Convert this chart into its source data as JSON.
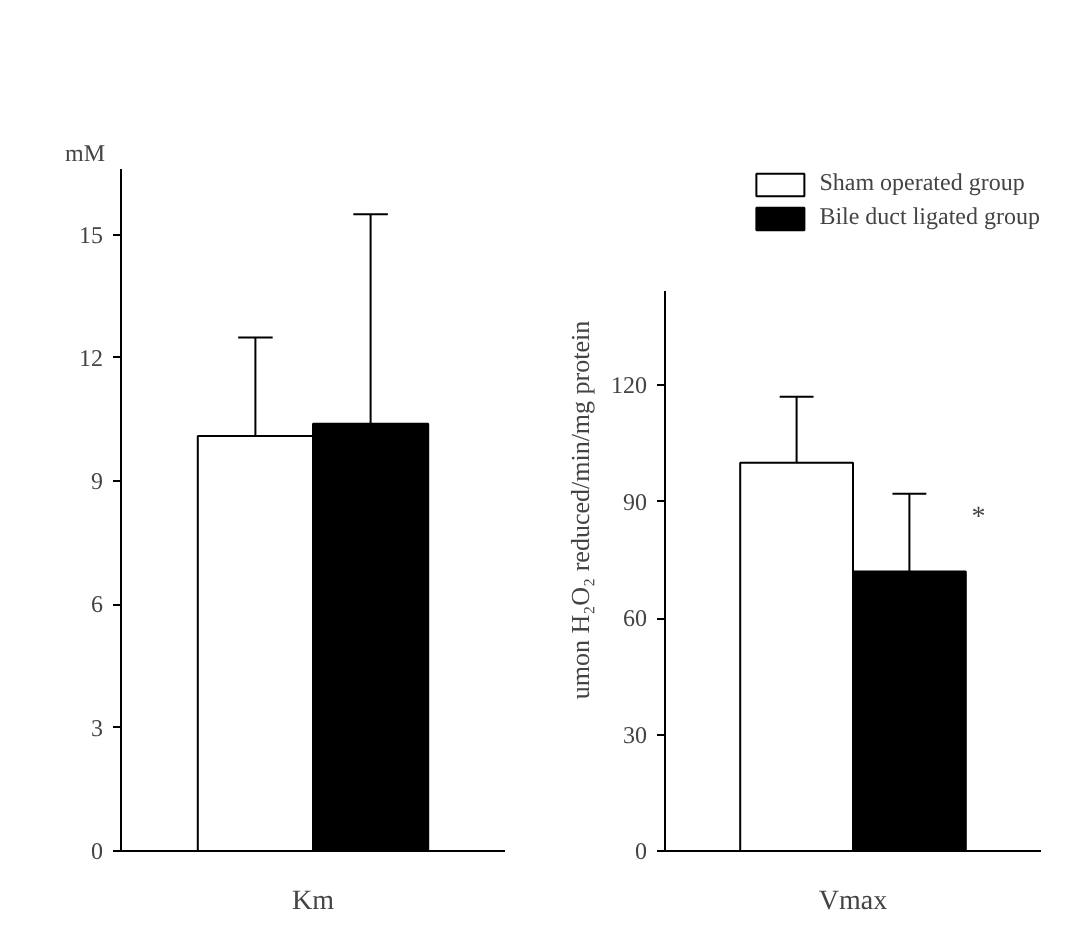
{
  "chart_data": [
    {
      "type": "bar",
      "ylabel": "mM",
      "categories": [
        "Km"
      ],
      "ylim": [
        0,
        16.6
      ],
      "yticks": [
        0,
        3,
        6,
        9,
        12,
        15
      ],
      "grid": false,
      "series": [
        {
          "color": "#ffffff",
          "values": [
            10.1
          ],
          "errors": [
            [
              10.1,
              12.5
            ]
          ]
        },
        {
          "color": "#000000",
          "values": [
            10.4
          ],
          "errors": [
            [
              10.4,
              15.5
            ]
          ]
        }
      ]
    },
    {
      "type": "bar",
      "ylabel": "umon H₂O₂ reduced/min/mg protein",
      "categories": [
        "Vmax"
      ],
      "ylim": [
        0,
        144
      ],
      "yticks": [
        0,
        30,
        60,
        90,
        120
      ],
      "grid": false,
      "legend": "top",
      "annotations": [
        "*"
      ],
      "series": [
        {
          "name": "Sham operated group",
          "color": "#ffffff",
          "values": [
            100
          ],
          "errors": [
            [
              100,
              117
            ]
          ]
        },
        {
          "name": "Bile duct ligated group",
          "color": "#000000",
          "values": [
            72
          ],
          "errors": [
            [
              72,
              92
            ]
          ]
        }
      ]
    }
  ]
}
